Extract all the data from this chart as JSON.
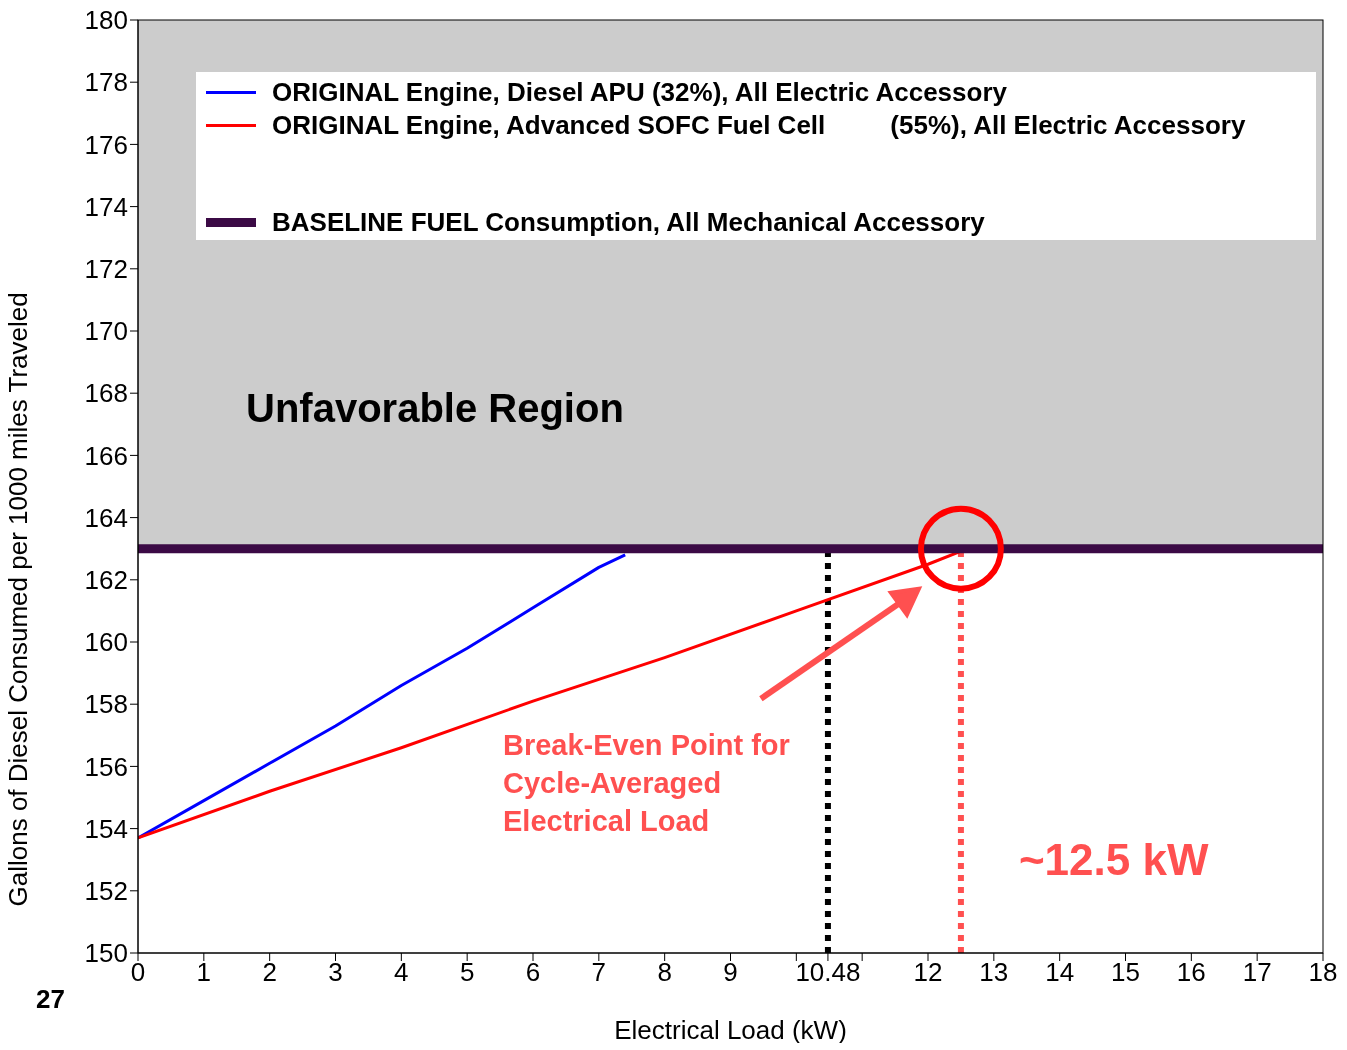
{
  "chart_data": {
    "type": "line",
    "xlabel": "Electrical Load (kW)",
    "ylabel": "Gallons of Diesel Consumed per 1000 miles Traveled",
    "xlim": [
      0,
      18
    ],
    "xticks": [
      0,
      1,
      2,
      3,
      4,
      5,
      6,
      7,
      8,
      9,
      {
        "value": 10,
        "label": null
      },
      {
        "value": 10.48,
        "label": "10.48"
      },
      {
        "value": 11,
        "label": null
      },
      12,
      13,
      14,
      15,
      16,
      17,
      18
    ],
    "ylim": [
      150,
      180
    ],
    "yticks": [
      150,
      152,
      154,
      156,
      158,
      160,
      162,
      164,
      166,
      168,
      170,
      172,
      174,
      176,
      178,
      180
    ],
    "series": [
      {
        "name": "ORIGINAL Engine, Diesel APU (32%), All Electric Accessory",
        "color": "#0000ff",
        "x": [
          0,
          1,
          2,
          3,
          4,
          5,
          6,
          7,
          7.4
        ],
        "values": [
          153.7,
          154.9,
          156.1,
          157.3,
          158.6,
          159.8,
          161.1,
          162.4,
          162.8
        ]
      },
      {
        "name": "ORIGINAL Engine, Advanced SOFC Fuel Cell         (55%), All Electric Accessory",
        "color": "#ff0000",
        "x": [
          0,
          2,
          4,
          6,
          8,
          10,
          12,
          12.6
        ],
        "values": [
          153.7,
          155.2,
          156.6,
          158.1,
          159.5,
          161.0,
          162.5,
          163
        ]
      },
      {
        "name": "BASELINE FUEL Consumption, All Mechanical Accessory",
        "color": "#3b0a45",
        "x": [
          0,
          18
        ],
        "values": [
          163,
          163
        ]
      }
    ],
    "bands": [
      {
        "axis": "y",
        "from": 163,
        "to": 180,
        "label": "Unfavorable Region",
        "color": "#cccccc"
      }
    ],
    "ref_lines": [
      {
        "axis": "x",
        "value": 10.48,
        "color": "#000000",
        "line_style": "dotted"
      },
      {
        "axis": "x",
        "value": 12.5,
        "label": "~12.5 kW",
        "color": "#ff5050",
        "line_style": "dotted"
      }
    ],
    "annotations": [
      "Break-Even Point for Cycle-Averaged Electrical Load",
      "27"
    ],
    "legend": "top",
    "marker": "none",
    "line_style": "solid"
  }
}
